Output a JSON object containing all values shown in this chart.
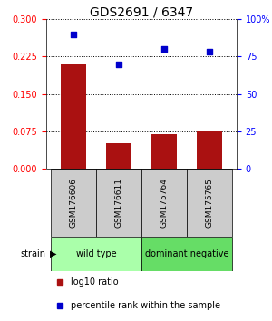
{
  "title": "GDS2691 / 6347",
  "samples": [
    "GSM176606",
    "GSM176611",
    "GSM175764",
    "GSM175765"
  ],
  "log10_ratio": [
    0.21,
    0.05,
    0.068,
    0.075
  ],
  "percentile_rank": [
    90,
    70,
    80,
    78
  ],
  "bar_color": "#aa1111",
  "dot_color": "#0000cc",
  "left_yticks": [
    0,
    0.075,
    0.15,
    0.225,
    0.3
  ],
  "right_yticks": [
    0,
    25,
    50,
    75,
    100
  ],
  "ylim_left": [
    0,
    0.3
  ],
  "ylim_right": [
    0,
    100
  ],
  "groups": [
    {
      "label": "wild type",
      "color": "#aaffaa",
      "samples": [
        0,
        1
      ]
    },
    {
      "label": "dominant negative",
      "color": "#66dd66",
      "samples": [
        2,
        3
      ]
    }
  ],
  "legend_items": [
    {
      "color": "#aa1111",
      "label": "log10 ratio"
    },
    {
      "color": "#0000cc",
      "label": "percentile rank within the sample"
    }
  ],
  "strain_label": "strain",
  "background_color": "#ffffff",
  "box_color": "#cccccc"
}
